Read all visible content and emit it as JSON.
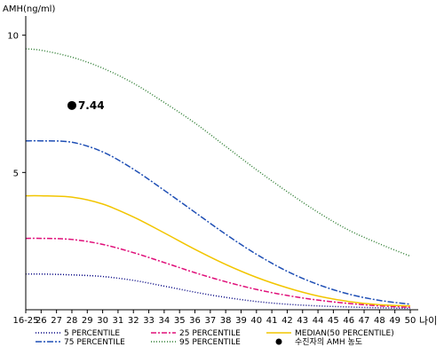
{
  "chart_data": {
    "type": "line",
    "ylabel": "AMH(ng/ml)",
    "xlabel": "나이",
    "x_tick_labels": [
      "16-25",
      "26",
      "27",
      "28",
      "29",
      "30",
      "31",
      "32",
      "33",
      "34",
      "35",
      "36",
      "37",
      "38",
      "39",
      "40",
      "41",
      "42",
      "43",
      "44",
      "45",
      "46",
      "47",
      "48",
      "49",
      "50"
    ],
    "y_ticks": [
      5,
      10
    ],
    "ylim": [
      0,
      10.7
    ],
    "xlim": [
      25,
      50
    ],
    "grid": false,
    "legend_position": "bottom",
    "series": [
      {
        "name": "5 PERCENTILE",
        "color": "#000080",
        "dash": "1,2",
        "x": [
          25,
          26,
          28,
          30,
          32,
          34,
          36,
          38,
          40,
          42,
          44,
          46,
          48,
          50
        ],
        "values": [
          1.3,
          1.3,
          1.27,
          1.21,
          1.07,
          0.86,
          0.64,
          0.45,
          0.3,
          0.2,
          0.14,
          0.1,
          0.07,
          0.05
        ]
      },
      {
        "name": "25 PERCENTILE",
        "color": "#e0107a",
        "dash": "6,2,2,2",
        "x": [
          25,
          26,
          28,
          30,
          32,
          34,
          36,
          38,
          40,
          42,
          44,
          46,
          48,
          50
        ],
        "values": [
          2.6,
          2.6,
          2.56,
          2.38,
          2.08,
          1.72,
          1.35,
          1.02,
          0.74,
          0.52,
          0.35,
          0.23,
          0.14,
          0.09
        ]
      },
      {
        "name": "MEDIAN(50 PERCENTILE)",
        "color": "#f2c500",
        "dash": "",
        "x": [
          25,
          26,
          28,
          30,
          32,
          34,
          36,
          38,
          40,
          42,
          44,
          46,
          48,
          50
        ],
        "values": [
          4.15,
          4.15,
          4.1,
          3.85,
          3.38,
          2.8,
          2.2,
          1.65,
          1.18,
          0.8,
          0.5,
          0.3,
          0.18,
          0.14
        ]
      },
      {
        "name": "75 PERCENTILE",
        "color": "#1f4fb5",
        "dash": "7,2,2,2",
        "x": [
          25,
          26,
          28,
          30,
          32,
          34,
          36,
          38,
          40,
          42,
          44,
          46,
          48,
          50
        ],
        "values": [
          6.15,
          6.15,
          6.1,
          5.75,
          5.12,
          4.35,
          3.55,
          2.75,
          2.02,
          1.4,
          0.92,
          0.57,
          0.34,
          0.2
        ]
      },
      {
        "name": "95 PERCENTILE",
        "color": "#2e7d32",
        "dash": "1,2",
        "x": [
          25,
          26,
          28,
          30,
          32,
          34,
          36,
          38,
          40,
          42,
          44,
          46,
          48,
          50
        ],
        "values": [
          9.5,
          9.45,
          9.2,
          8.8,
          8.25,
          7.55,
          6.8,
          5.95,
          5.1,
          4.3,
          3.55,
          2.9,
          2.4,
          1.95
        ]
      }
    ],
    "point": {
      "name": "수진자의 AMH 농도",
      "x": 28,
      "y": 7.44,
      "label": "7.44",
      "color": "#000000"
    },
    "legend": [
      {
        "label": "5 PERCENTILE",
        "color": "#000080",
        "dash": "1,2",
        "kind": "line"
      },
      {
        "label": "25 PERCENTILE",
        "color": "#e0107a",
        "dash": "6,2,2,2",
        "kind": "line"
      },
      {
        "label": "MEDIAN(50 PERCENTILE)",
        "color": "#f2c500",
        "dash": "",
        "kind": "line"
      },
      {
        "label": "75 PERCENTILE",
        "color": "#1f4fb5",
        "dash": "7,2,2,2",
        "kind": "line"
      },
      {
        "label": "95 PERCENTILE",
        "color": "#2e7d32",
        "dash": "1,2",
        "kind": "line"
      },
      {
        "label": "수진자의 AMH 농도",
        "color": "#000000",
        "dash": "",
        "kind": "point"
      }
    ]
  }
}
